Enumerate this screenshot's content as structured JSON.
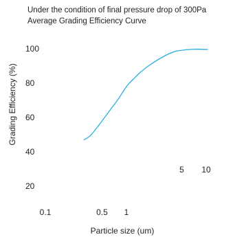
{
  "chart_data": {
    "type": "line",
    "title": "Under the condition of final pressure drop of 300Pa",
    "subtitle": "Average Grading Efficiency Curve",
    "xlabel": "Particle size (um)",
    "ylabel": "Grading Efficiency (%)",
    "x_scale": "log",
    "x_ticks": [
      {
        "label": "0.1",
        "value": 0.1
      },
      {
        "label": "0.5",
        "value": 0.5
      },
      {
        "label": "1",
        "value": 1
      }
    ],
    "x_ticks_upper": [
      {
        "label": "5",
        "value": 5
      },
      {
        "label": "10",
        "value": 10
      }
    ],
    "y_ticks": [
      {
        "label": "100",
        "value": 100
      },
      {
        "label": "80",
        "value": 80
      },
      {
        "label": "60",
        "value": 60
      },
      {
        "label": "40",
        "value": 40
      },
      {
        "label": "20",
        "value": 20
      }
    ],
    "ylim": [
      13,
      103
    ],
    "grid": false,
    "series": [
      {
        "color": "#29aee0",
        "x": [
          0.3,
          0.35,
          0.4,
          0.5,
          0.6,
          0.8,
          1.0,
          1.2,
          1.5,
          2,
          3,
          4,
          5,
          6,
          7,
          8,
          10
        ],
        "y": [
          47,
          49,
          52,
          58,
          63,
          71,
          78,
          82,
          86.5,
          91,
          96,
          98.5,
          99.2,
          99.6,
          99.7,
          99.7,
          99.6
        ]
      }
    ]
  }
}
